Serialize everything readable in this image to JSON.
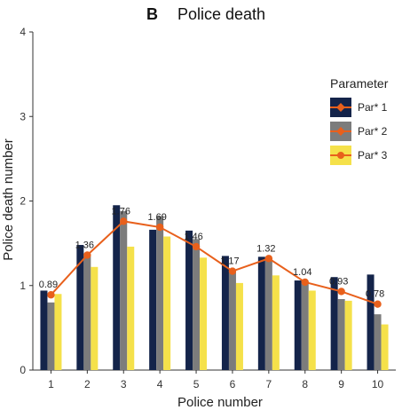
{
  "chart_data": {
    "type": "bar",
    "panel_letter": "B",
    "title": "Police death",
    "xlabel": "Police number",
    "ylabel": "Police death number",
    "categories": [
      "1",
      "2",
      "3",
      "4",
      "5",
      "6",
      "7",
      "8",
      "9",
      "10"
    ],
    "ylim": [
      0,
      4
    ],
    "yticks": [
      "0",
      "1",
      "2",
      "3",
      "4"
    ],
    "grid": false,
    "legend": {
      "title": "Parameter",
      "position": "top-right"
    },
    "series": [
      {
        "name": "Par* 1",
        "type": "bar",
        "color": "#14244a",
        "values": [
          0.94,
          1.48,
          1.95,
          1.66,
          1.65,
          1.35,
          1.34,
          1.06,
          1.1,
          1.13
        ]
      },
      {
        "name": "Par* 2",
        "type": "bar",
        "color": "#7c7c7c",
        "values": [
          0.8,
          1.36,
          1.88,
          1.82,
          1.55,
          1.17,
          1.32,
          1.02,
          0.84,
          0.66
        ]
      },
      {
        "name": "Par* 3",
        "type": "line",
        "bar_color": "#f5e14a",
        "line_color": "#e8601c",
        "bar_values": [
          0.9,
          1.22,
          1.46,
          1.58,
          1.33,
          1.03,
          1.12,
          0.94,
          0.82,
          0.54
        ],
        "values": [
          0.89,
          1.36,
          1.76,
          1.69,
          1.46,
          1.17,
          1.32,
          1.04,
          0.93,
          0.78
        ],
        "labels": [
          "0.89",
          "1.36",
          "1.76",
          "1.69",
          "1.46",
          "1.17",
          "1.32",
          "1.04",
          "0.93",
          "0.78"
        ]
      }
    ]
  }
}
